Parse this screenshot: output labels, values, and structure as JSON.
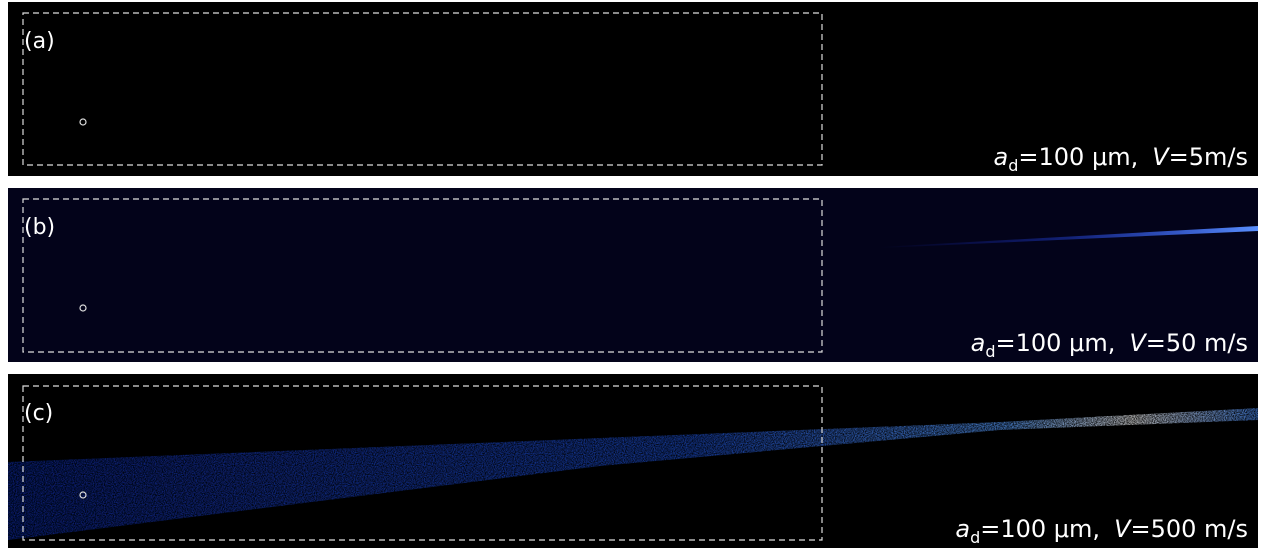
{
  "panels": [
    {
      "label": "(a)",
      "droplet": {
        "symbol": "a",
        "subscript": "d",
        "value": "=100 μm,"
      },
      "velocity": {
        "symbol": "V",
        "value": "=5m/s"
      }
    },
    {
      "label": "(b)",
      "droplet": {
        "symbol": "a",
        "subscript": "d",
        "value": "=100 μm,"
      },
      "velocity": {
        "symbol": "V",
        "value": "=50 m/s"
      }
    },
    {
      "label": "(c)",
      "droplet": {
        "symbol": "a",
        "subscript": "d",
        "value": "=100 μm,"
      },
      "velocity": {
        "symbol": "V",
        "value": "=500 m/s"
      }
    }
  ]
}
